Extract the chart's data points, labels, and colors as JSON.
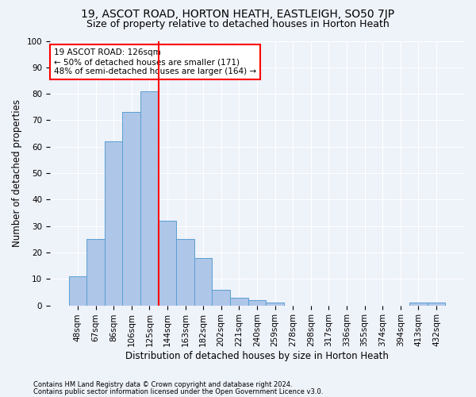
{
  "title1": "19, ASCOT ROAD, HORTON HEATH, EASTLEIGH, SO50 7JP",
  "title2": "Size of property relative to detached houses in Horton Heath",
  "xlabel": "Distribution of detached houses by size in Horton Heath",
  "ylabel": "Number of detached properties",
  "footnote1": "Contains HM Land Registry data © Crown copyright and database right 2024.",
  "footnote2": "Contains public sector information licensed under the Open Government Licence v3.0.",
  "bar_labels": [
    "48sqm",
    "67sqm",
    "86sqm",
    "106sqm",
    "125sqm",
    "144sqm",
    "163sqm",
    "182sqm",
    "202sqm",
    "221sqm",
    "240sqm",
    "259sqm",
    "278sqm",
    "298sqm",
    "317sqm",
    "336sqm",
    "355sqm",
    "374sqm",
    "394sqm",
    "413sqm",
    "432sqm"
  ],
  "bar_values": [
    11,
    25,
    62,
    73,
    81,
    32,
    25,
    18,
    6,
    3,
    2,
    1,
    0,
    0,
    0,
    0,
    0,
    0,
    0,
    1,
    1
  ],
  "bar_color": "#aec6e8",
  "bar_edge_color": "#5a9fd4",
  "property_line_x": 4,
  "property_line_color": "red",
  "annotation_line1": "19 ASCOT ROAD: 126sqm",
  "annotation_line2": "← 50% of detached houses are smaller (171)",
  "annotation_line3": "48% of semi-detached houses are larger (164) →",
  "annotation_box_color": "white",
  "annotation_box_edge_color": "red",
  "ylim": [
    0,
    100
  ],
  "yticks": [
    0,
    10,
    20,
    30,
    40,
    50,
    60,
    70,
    80,
    90,
    100
  ],
  "background_color": "#eef2f9",
  "title1_fontsize": 10,
  "title2_fontsize": 9,
  "xlabel_fontsize": 8.5,
  "ylabel_fontsize": 8.5,
  "tick_fontsize": 7.5,
  "annotation_fontsize": 7.5,
  "footnote_fontsize": 6
}
